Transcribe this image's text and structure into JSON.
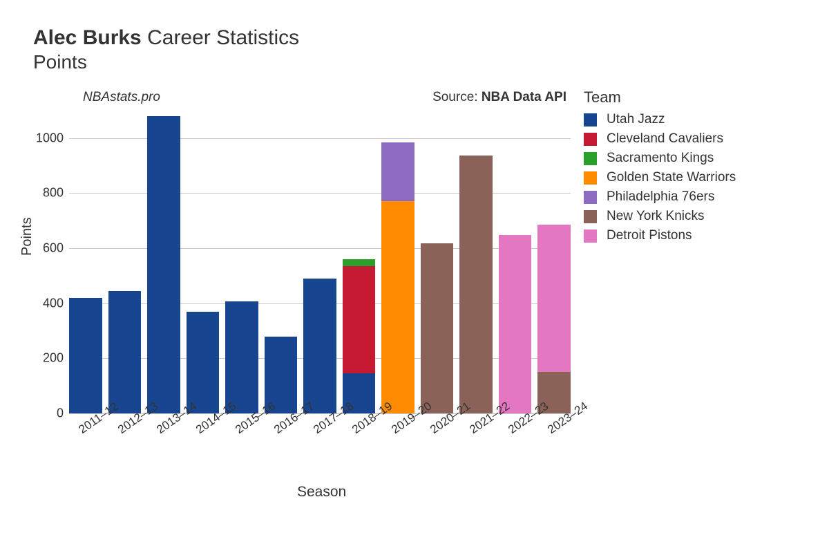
{
  "title": {
    "player_name": "Alec Burks",
    "suffix": "Career Statistics",
    "metric": "Points"
  },
  "attribution": {
    "site": "NBAstats.pro",
    "source_prefix": "Source: ",
    "source_name": "NBA Data API"
  },
  "chart": {
    "type": "stacked-bar",
    "x_label": "Season",
    "y_label": "Points",
    "background_color": "#ffffff",
    "grid_color": "#b0b0b0",
    "y_axis": {
      "min": 0,
      "max": 1080,
      "ticks": [
        0,
        200,
        400,
        600,
        800,
        1000
      ]
    },
    "teams": {
      "utah": {
        "label": "Utah Jazz",
        "color": "#17458f"
      },
      "cle": {
        "label": "Cleveland Cavaliers",
        "color": "#c61a32"
      },
      "sac": {
        "label": "Sacramento Kings",
        "color": "#2aa02a"
      },
      "gsw": {
        "label": "Golden State Warriors",
        "color": "#ff8c00"
      },
      "phi": {
        "label": "Philadelphia 76ers",
        "color": "#8e6cc1"
      },
      "nyk": {
        "label": "New York Knicks",
        "color": "#8b6258"
      },
      "det": {
        "label": "Detroit Pistons",
        "color": "#e377c2"
      }
    },
    "legend_order": [
      "utah",
      "cle",
      "sac",
      "gsw",
      "phi",
      "nyk",
      "det"
    ],
    "legend_title": "Team",
    "seasons": [
      {
        "label": "2011–12",
        "segments": [
          {
            "team": "utah",
            "value": 420
          }
        ]
      },
      {
        "label": "2012–13",
        "segments": [
          {
            "team": "utah",
            "value": 445
          }
        ]
      },
      {
        "label": "2013–14",
        "segments": [
          {
            "team": "utah",
            "value": 1080
          }
        ]
      },
      {
        "label": "2014–15",
        "segments": [
          {
            "team": "utah",
            "value": 370
          }
        ]
      },
      {
        "label": "2015–16",
        "segments": [
          {
            "team": "utah",
            "value": 408
          }
        ]
      },
      {
        "label": "2016–17",
        "segments": [
          {
            "team": "utah",
            "value": 280
          }
        ]
      },
      {
        "label": "2017–18",
        "segments": [
          {
            "team": "utah",
            "value": 490
          }
        ]
      },
      {
        "label": "2018–19",
        "segments": [
          {
            "team": "utah",
            "value": 145
          },
          {
            "team": "cle",
            "value": 390
          },
          {
            "team": "sac",
            "value": 25
          }
        ]
      },
      {
        "label": "2019–20",
        "segments": [
          {
            "team": "gsw",
            "value": 770
          },
          {
            "team": "phi",
            "value": 215
          }
        ]
      },
      {
        "label": "2020–21",
        "segments": [
          {
            "team": "nyk",
            "value": 617
          }
        ]
      },
      {
        "label": "2021–22",
        "segments": [
          {
            "team": "nyk",
            "value": 938
          }
        ]
      },
      {
        "label": "2022–23",
        "segments": [
          {
            "team": "det",
            "value": 647
          }
        ]
      },
      {
        "label": "2023–24",
        "segments": [
          {
            "team": "nyk",
            "value": 150
          },
          {
            "team": "det",
            "value": 535
          }
        ]
      }
    ],
    "tick_fontsize": 18,
    "axis_label_fontsize": 20,
    "legend_fontsize": 19
  }
}
